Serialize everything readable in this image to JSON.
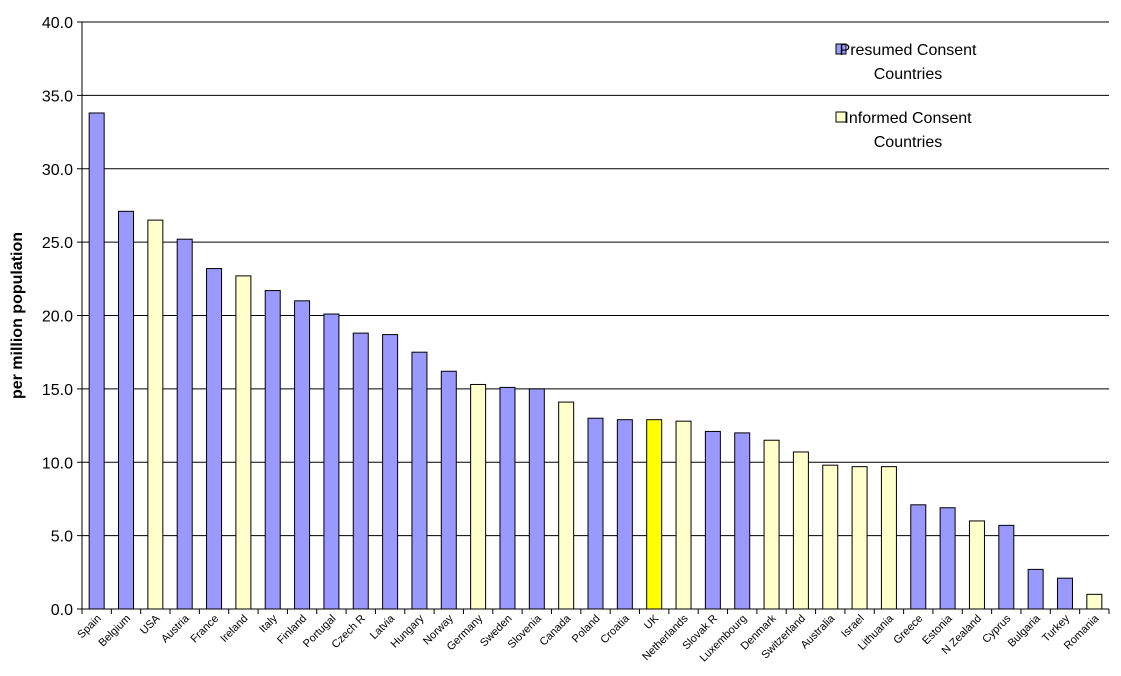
{
  "chart_data": {
    "type": "bar",
    "ylabel": "per million population",
    "ylim": [
      0,
      40
    ],
    "yticks": [
      "0.0",
      "5.0",
      "10.0",
      "15.0",
      "20.0",
      "25.0",
      "30.0",
      "35.0",
      "40.0"
    ],
    "grid": true,
    "legend_position": "top-right",
    "legend": [
      {
        "lines": [
          "Presumed Consent",
          "Countries"
        ],
        "color": "#9999ff"
      },
      {
        "lines": [
          "Informed Consent",
          "Countries"
        ],
        "color": "#ffffcc"
      }
    ],
    "colors": {
      "presumed": "#9999ff",
      "informed": "#ffffcc",
      "highlight": "#ffff00"
    },
    "categories": [
      "Spain",
      "Belgium",
      "USA",
      "Austria",
      "France",
      "Ireland",
      "Italy",
      "Finland",
      "Portugal",
      "Czech R",
      "Latvia",
      "Hungary",
      "Norway",
      "Germany",
      "Sweden",
      "Slovenia",
      "Canada",
      "Poland",
      "Croatia",
      "UK",
      "Netherlands",
      "Slovak R",
      "Luxembourg",
      "Denmark",
      "Switzerland",
      "Australia",
      "Israel",
      "Lithuania",
      "Greece",
      "Estonia",
      "N Zealand",
      "Cyprus",
      "Bulgaria",
      "Turkey",
      "Romania"
    ],
    "values": [
      33.8,
      27.1,
      26.5,
      25.2,
      23.2,
      22.7,
      21.7,
      21.0,
      20.1,
      18.8,
      18.7,
      17.5,
      16.2,
      15.3,
      15.1,
      15.0,
      14.1,
      13.0,
      12.9,
      12.9,
      12.8,
      12.1,
      12.0,
      11.5,
      10.7,
      9.8,
      9.7,
      9.7,
      7.1,
      6.9,
      6.0,
      5.7,
      2.7,
      2.1,
      1.0
    ],
    "groups": [
      "presumed",
      "presumed",
      "informed",
      "presumed",
      "presumed",
      "informed",
      "presumed",
      "presumed",
      "presumed",
      "presumed",
      "presumed",
      "presumed",
      "presumed",
      "informed",
      "presumed",
      "presumed",
      "informed",
      "presumed",
      "presumed",
      "highlight",
      "informed",
      "presumed",
      "presumed",
      "informed",
      "informed",
      "informed",
      "informed",
      "informed",
      "presumed",
      "presumed",
      "informed",
      "presumed",
      "presumed",
      "presumed",
      "informed"
    ]
  }
}
